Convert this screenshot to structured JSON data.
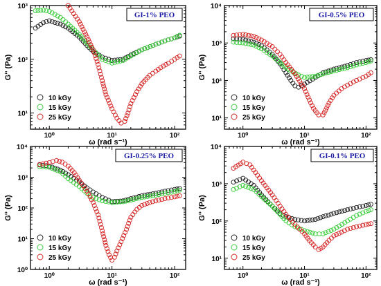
{
  "figure": {
    "series_colors": [
      "#1a1a1a",
      "#33cc33",
      "#d42020"
    ]
  },
  "chart_data": [
    {
      "type": "scatter",
      "title": "GI-1% PEO",
      "xlabel": "ω (rad s⁻¹)",
      "ylabel": "G'' (Pa)",
      "xscale": "log",
      "yscale": "log",
      "xlim": [
        0.5,
        150
      ],
      "ylim": [
        5,
        1000
      ],
      "x_ticks": [
        1,
        10,
        100
      ],
      "x_tick_labels": [
        "10⁰",
        "10¹",
        "10²"
      ],
      "y_ticks": [
        10,
        100,
        1000
      ],
      "y_tick_labels": [
        "10¹",
        "10²",
        "10³"
      ],
      "legend_position": "bottom-left",
      "series": [
        {
          "name": "10 kGy",
          "points": [
            [
              0.6,
              380
            ],
            [
              0.8,
              480
            ],
            [
              1,
              520
            ],
            [
              1.5,
              450
            ],
            [
              2,
              380
            ],
            [
              3,
              260
            ],
            [
              4,
              180
            ],
            [
              5,
              140
            ],
            [
              7,
              110
            ],
            [
              10,
              95
            ],
            [
              15,
              100
            ],
            [
              20,
              120
            ],
            [
              30,
              150
            ],
            [
              50,
              190
            ],
            [
              70,
              220
            ],
            [
              100,
              250
            ],
            [
              120,
              270
            ]
          ]
        },
        {
          "name": "15 kGy",
          "points": [
            [
              0.6,
              800
            ],
            [
              0.8,
              820
            ],
            [
              1,
              780
            ],
            [
              1.5,
              600
            ],
            [
              2,
              450
            ],
            [
              3,
              290
            ],
            [
              4,
              200
            ],
            [
              5,
              150
            ],
            [
              7,
              100
            ],
            [
              10,
              85
            ],
            [
              15,
              95
            ],
            [
              20,
              115
            ],
            [
              30,
              150
            ],
            [
              50,
              190
            ],
            [
              70,
              220
            ],
            [
              100,
              250
            ],
            [
              120,
              280
            ]
          ]
        },
        {
          "name": "25 kGy",
          "points": [
            [
              2,
              1000
            ],
            [
              3,
              500
            ],
            [
              4,
              260
            ],
            [
              5,
              150
            ],
            [
              6,
              80
            ],
            [
              7,
              40
            ],
            [
              8,
              22
            ],
            [
              10,
              12
            ],
            [
              12,
              8
            ],
            [
              14,
              6.5
            ],
            [
              16,
              7
            ],
            [
              18,
              10
            ],
            [
              20,
              15
            ],
            [
              25,
              25
            ],
            [
              30,
              35
            ],
            [
              40,
              50
            ],
            [
              50,
              60
            ],
            [
              60,
              70
            ],
            [
              80,
              85
            ],
            [
              100,
              100
            ],
            [
              120,
              115
            ]
          ]
        }
      ]
    },
    {
      "type": "scatter",
      "title": "GI-0.5% PEO",
      "xlabel": "ω (rad s⁻¹)",
      "ylabel": "G'' (Pa)",
      "xscale": "log",
      "yscale": "log",
      "xlim": [
        0.5,
        150
      ],
      "ylim": [
        5,
        10000
      ],
      "x_ticks": [
        1,
        10,
        100
      ],
      "x_tick_labels": [
        "10⁰",
        "10¹",
        "10²"
      ],
      "y_ticks": [
        10,
        100,
        1000,
        10000
      ],
      "y_tick_labels": [
        "10¹",
        "10²",
        "10³",
        "10⁴"
      ],
      "legend_position": "bottom-left",
      "series": [
        {
          "name": "10 kGy",
          "points": [
            [
              0.7,
              1300
            ],
            [
              1,
              1250
            ],
            [
              1.5,
              1050
            ],
            [
              2,
              850
            ],
            [
              3,
              500
            ],
            [
              4,
              280
            ],
            [
              5,
              160
            ],
            [
              6,
              100
            ],
            [
              7,
              72
            ],
            [
              8,
              66
            ],
            [
              10,
              80
            ],
            [
              15,
              120
            ],
            [
              20,
              160
            ],
            [
              30,
              200
            ],
            [
              50,
              250
            ],
            [
              70,
              300
            ],
            [
              100,
              340
            ],
            [
              120,
              360
            ]
          ]
        },
        {
          "name": "15 kGy",
          "points": [
            [
              0.7,
              1050
            ],
            [
              1,
              1000
            ],
            [
              1.5,
              880
            ],
            [
              2,
              700
            ],
            [
              3,
              450
            ],
            [
              4,
              300
            ],
            [
              5,
              220
            ],
            [
              6,
              180
            ],
            [
              8,
              140
            ],
            [
              10,
              120
            ],
            [
              15,
              130
            ],
            [
              20,
              150
            ],
            [
              30,
              180
            ],
            [
              50,
              220
            ],
            [
              70,
              260
            ],
            [
              100,
              300
            ],
            [
              120,
              330
            ]
          ]
        },
        {
          "name": "25 kGy",
          "points": [
            [
              0.7,
              1600
            ],
            [
              1,
              1700
            ],
            [
              1.5,
              1500
            ],
            [
              2,
              1200
            ],
            [
              3,
              800
            ],
            [
              4,
              500
            ],
            [
              5,
              300
            ],
            [
              7,
              150
            ],
            [
              10,
              60
            ],
            [
              12,
              30
            ],
            [
              14,
              18
            ],
            [
              17,
              12
            ],
            [
              20,
              12
            ],
            [
              22,
              16
            ],
            [
              25,
              25
            ],
            [
              30,
              40
            ],
            [
              40,
              60
            ],
            [
              50,
              75
            ],
            [
              70,
              100
            ],
            [
              100,
              130
            ],
            [
              120,
              160
            ]
          ]
        }
      ]
    },
    {
      "type": "scatter",
      "title": "GI-0.25% PEO",
      "xlabel": "ω (rad s⁻¹)",
      "ylabel": "G'' (Pa)",
      "xscale": "log",
      "yscale": "log",
      "xlim": [
        0.5,
        150
      ],
      "ylim": [
        1,
        10000
      ],
      "x_ticks": [
        1,
        10,
        100
      ],
      "x_tick_labels": [
        "10⁰",
        "10¹",
        "10²"
      ],
      "y_ticks": [
        1,
        10,
        100,
        1000,
        10000
      ],
      "y_tick_labels": [
        "10⁰",
        "10¹",
        "10²",
        "10³",
        "10⁴"
      ],
      "legend_position": "bottom-left",
      "series": [
        {
          "name": "10 kGy",
          "points": [
            [
              0.7,
              2500
            ],
            [
              1,
              2300
            ],
            [
              1.5,
              1700
            ],
            [
              2,
              1200
            ],
            [
              3,
              700
            ],
            [
              4,
              450
            ],
            [
              5,
              330
            ],
            [
              7,
              220
            ],
            [
              10,
              160
            ],
            [
              15,
              170
            ],
            [
              20,
              200
            ],
            [
              30,
              250
            ],
            [
              50,
              300
            ],
            [
              70,
              350
            ],
            [
              100,
              400
            ],
            [
              120,
              430
            ]
          ]
        },
        {
          "name": "15 kGy",
          "points": [
            [
              0.7,
              2200
            ],
            [
              1,
              2100
            ],
            [
              1.5,
              1500
            ],
            [
              2,
              900
            ],
            [
              3,
              500
            ],
            [
              4,
              300
            ],
            [
              5,
              220
            ],
            [
              7,
              170
            ],
            [
              10,
              150
            ],
            [
              15,
              160
            ],
            [
              20,
              180
            ],
            [
              30,
              220
            ],
            [
              50,
              260
            ],
            [
              70,
              300
            ],
            [
              100,
              340
            ],
            [
              120,
              380
            ]
          ]
        },
        {
          "name": "25 kGy",
          "points": [
            [
              0.7,
              2600
            ],
            [
              1,
              3000
            ],
            [
              1.3,
              3500
            ],
            [
              1.6,
              3100
            ],
            [
              2,
              2300
            ],
            [
              2.5,
              1400
            ],
            [
              3,
              800
            ],
            [
              4,
              350
            ],
            [
              5,
              150
            ],
            [
              6,
              60
            ],
            [
              7,
              18
            ],
            [
              8,
              6
            ],
            [
              9,
              3
            ],
            [
              10,
              2
            ],
            [
              11,
              2.5
            ],
            [
              12,
              4
            ],
            [
              14,
              8
            ],
            [
              17,
              20
            ],
            [
              20,
              50
            ],
            [
              25,
              90
            ],
            [
              30,
              120
            ],
            [
              40,
              150
            ],
            [
              50,
              170
            ],
            [
              70,
              200
            ],
            [
              100,
              230
            ],
            [
              120,
              250
            ]
          ]
        }
      ]
    },
    {
      "type": "scatter",
      "title": "GI-0.1% PEO",
      "xlabel": "ω (rad s⁻¹)",
      "ylabel": "G'' (Pa)",
      "xscale": "log",
      "yscale": "log",
      "xlim": [
        0.5,
        150
      ],
      "ylim": [
        5,
        10000
      ],
      "x_ticks": [
        1,
        10,
        100
      ],
      "x_tick_labels": [
        "10⁰",
        "10¹",
        "10²"
      ],
      "y_ticks": [
        10,
        100,
        1000,
        10000
      ],
      "y_tick_labels": [
        "10¹",
        "10²",
        "10³",
        "10⁴"
      ],
      "legend_position": "bottom-left",
      "series": [
        {
          "name": "10 kGy",
          "points": [
            [
              0.7,
              1100
            ],
            [
              1,
              1400
            ],
            [
              1.5,
              900
            ],
            [
              2,
              500
            ],
            [
              3,
              250
            ],
            [
              4,
              160
            ],
            [
              5,
              130
            ],
            [
              7,
              110
            ],
            [
              10,
              100
            ],
            [
              15,
              110
            ],
            [
              20,
              130
            ],
            [
              30,
              160
            ],
            [
              50,
              200
            ],
            [
              70,
              230
            ],
            [
              100,
              260
            ],
            [
              120,
              280
            ]
          ]
        },
        {
          "name": "15 kGy",
          "points": [
            [
              0.7,
              700
            ],
            [
              1,
              900
            ],
            [
              1.5,
              700
            ],
            [
              2,
              450
            ],
            [
              3,
              250
            ],
            [
              4,
              150
            ],
            [
              5,
              100
            ],
            [
              7,
              70
            ],
            [
              10,
              55
            ],
            [
              15,
              45
            ],
            [
              20,
              45
            ],
            [
              30,
              60
            ],
            [
              50,
              100
            ],
            [
              70,
              140
            ],
            [
              100,
              180
            ],
            [
              120,
              200
            ]
          ]
        },
        {
          "name": "25 kGy",
          "points": [
            [
              0.7,
              2600
            ],
            [
              1,
              3800
            ],
            [
              1.3,
              3200
            ],
            [
              1.6,
              2000
            ],
            [
              2,
              1200
            ],
            [
              3,
              500
            ],
            [
              4,
              250
            ],
            [
              5,
              150
            ],
            [
              7,
              80
            ],
            [
              10,
              45
            ],
            [
              12,
              30
            ],
            [
              15,
              20
            ],
            [
              17,
              17
            ],
            [
              20,
              20
            ],
            [
              25,
              30
            ],
            [
              30,
              40
            ],
            [
              40,
              50
            ],
            [
              50,
              60
            ],
            [
              70,
              70
            ],
            [
              100,
              80
            ],
            [
              120,
              85
            ]
          ]
        }
      ]
    }
  ]
}
